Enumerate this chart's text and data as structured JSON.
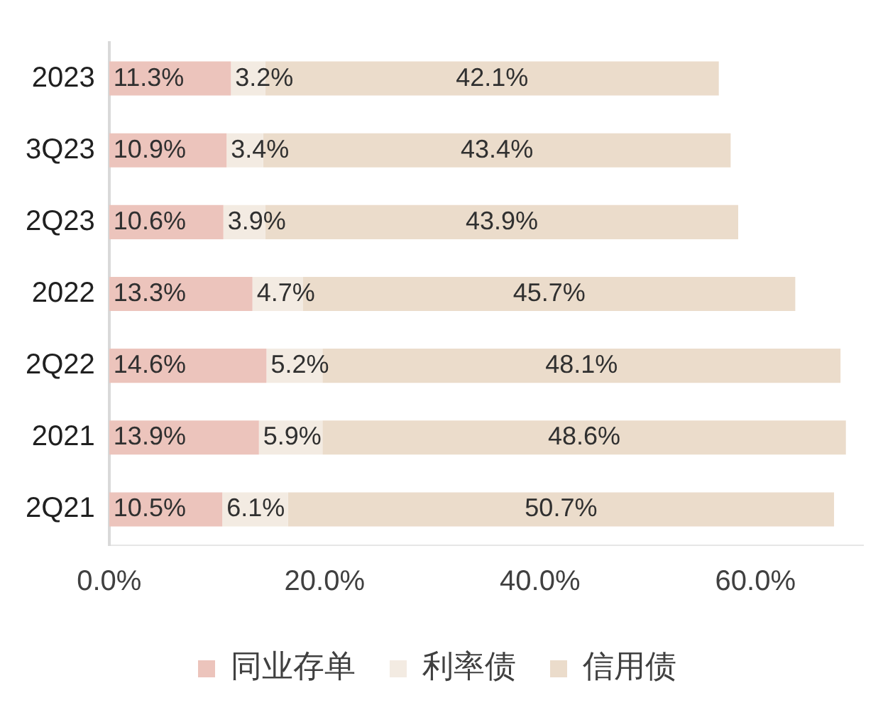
{
  "chart_data": {
    "type": "bar",
    "orientation": "horizontal",
    "stacked": true,
    "categories": [
      "2023",
      "3Q23",
      "2Q23",
      "2022",
      "2Q22",
      "2021",
      "2Q21"
    ],
    "series": [
      {
        "name": "同业存单",
        "color": "#ecc4bc",
        "values": [
          11.3,
          10.9,
          10.6,
          13.3,
          14.6,
          13.9,
          10.5
        ],
        "value_labels": [
          "11.3%",
          "10.9%",
          "10.6%",
          "13.3%",
          "14.6%",
          "13.9%",
          "10.5%"
        ]
      },
      {
        "name": "利率债",
        "color": "#f3ebe2",
        "values": [
          3.2,
          3.4,
          3.9,
          4.7,
          5.2,
          5.9,
          6.1
        ],
        "value_labels": [
          "3.2%",
          "3.4%",
          "3.9%",
          "4.7%",
          "5.2%",
          "5.9%",
          "6.1%"
        ]
      },
      {
        "name": "信用债",
        "color": "#ebdccb",
        "values": [
          42.1,
          43.4,
          43.9,
          45.7,
          48.1,
          48.6,
          50.7
        ],
        "value_labels": [
          "42.1%",
          "43.4%",
          "43.9%",
          "45.7%",
          "48.1%",
          "48.6%",
          "50.7%"
        ]
      }
    ],
    "xlim": [
      0,
      70
    ],
    "xticks": [
      {
        "value": 0,
        "label": "0.0%"
      },
      {
        "value": 20,
        "label": "20.0%"
      },
      {
        "value": 40,
        "label": "40.0%"
      },
      {
        "value": 60,
        "label": "60.0%"
      }
    ],
    "grid": false,
    "legend": "bottom"
  }
}
